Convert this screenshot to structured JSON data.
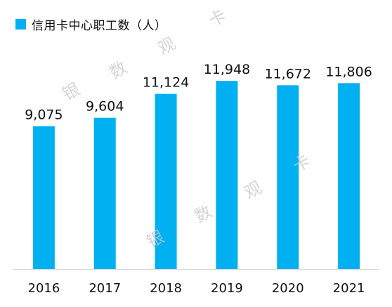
{
  "chart_data": {
    "type": "bar",
    "legend": "信用卡中心职工数（人）",
    "legend_position": "top-left",
    "categories": [
      "2016",
      "2017",
      "2018",
      "2019",
      "2020",
      "2021"
    ],
    "values": [
      9075,
      9604,
      11124,
      11948,
      11672,
      11806
    ],
    "value_labels": [
      "9,075",
      "9,604",
      "11,124",
      "11,948",
      "11,672",
      "11,806"
    ],
    "bar_color": "#00B0F0",
    "grid": false
  },
  "watermark": [
    "银",
    "数",
    "观",
    "卡"
  ]
}
